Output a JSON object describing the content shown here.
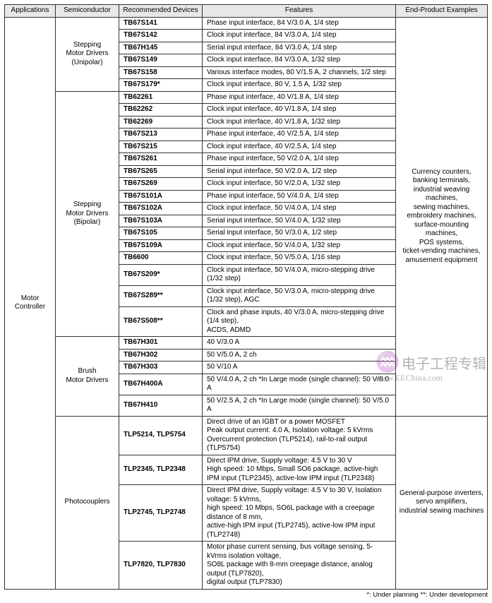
{
  "headers": {
    "applications": "Applications",
    "semiconductor": "Semiconductor",
    "devices": "Recommended Devices",
    "features": "Features",
    "end": "End-Product Examples"
  },
  "application": "Motor Controller",
  "groups": {
    "unipolar": "Stepping\nMotor Drivers\n(Unipolar)",
    "bipolar": "Stepping\nMotor Drivers\n(Bipolar)",
    "brush": "Brush\nMotor Drivers",
    "photo": "Photocouplers"
  },
  "end_products": {
    "top": "Currency counters,\nbanking terminals,\nindustrial weaving machines,\nsewing machines,\nembroidery machines,\nsurface-mounting machines,\nPOS systems,\nticket-vending machines,\namusement equipment",
    "bottom": "General-purpose inverters,\nservo amplifiers,\nindustrial sewing machines"
  },
  "rows": {
    "u": [
      {
        "dev": "TB67S141",
        "feat": "Phase input interface, 84 V/3.0 A, 1/4 step"
      },
      {
        "dev": "TB67S142",
        "feat": "Clock input interface, 84 V/3.0 A, 1/4 step"
      },
      {
        "dev": "TB67H145",
        "feat": "Serial input interface, 84 V/3.0 A, 1/4 step"
      },
      {
        "dev": "TB67S149",
        "feat": "Clock input interface, 84 V/3.0 A, 1/32 step"
      },
      {
        "dev": "TB67S158",
        "feat": "Various interface modes, 80 V/1.5 A, 2 channels, 1/2 step"
      },
      {
        "dev": "TB67S179*",
        "feat": "Clock input interface, 80 V, 1.5 A, 1/32 step"
      }
    ],
    "b": [
      {
        "dev": "TB62261",
        "feat": "Phase input interface, 40 V/1.8 A, 1/4 step"
      },
      {
        "dev": "TB62262",
        "feat": "Clock input interface, 40 V/1.8 A, 1/4 step"
      },
      {
        "dev": "TB62269",
        "feat": "Clock input interface, 40 V/1.8 A, 1/32 step"
      },
      {
        "dev": "TB67S213",
        "feat": "Phase input interface, 40 V/2.5 A, 1/4 step"
      },
      {
        "dev": "TB67S215",
        "feat": "Clock input interface, 40 V/2.5 A, 1/4 step"
      },
      {
        "dev": "TB67S261",
        "feat": "Phase input interface, 50 V/2.0 A, 1/4 step"
      },
      {
        "dev": "TB67S265",
        "feat": "Serial input interface, 50 V/2.0 A, 1/2 step"
      },
      {
        "dev": "TB67S269",
        "feat": "Clock input interface, 50 V/2.0 A, 1/32 step"
      },
      {
        "dev": "TB67S101A",
        "feat": "Phase input interface, 50 V/4.0 A, 1/4 step"
      },
      {
        "dev": "TB67S102A",
        "feat": "Clock input interface, 50 V/4.0 A, 1/4 step"
      },
      {
        "dev": "TB67S103A",
        "feat": "Serial input interface, 50 V/4.0 A, 1/32 step"
      },
      {
        "dev": "TB67S105",
        "feat": "Serial input interface, 50 V/3.0 A, 1/2 step"
      },
      {
        "dev": "TB67S109A",
        "feat": "Clock input interface, 50 V/4.0 A, 1/32 step"
      },
      {
        "dev": "TB6600",
        "feat": "Clock input interface, 50 V/5.0 A, 1/16  step"
      },
      {
        "dev": "TB67S209*",
        "feat": "Clock input interface, 50 V/4.0 A, micro-stepping drive (1/32 step)"
      },
      {
        "dev": "TB67S289**",
        "feat": "Clock input interface, 50 V/3.0 A, micro-stepping drive (1/32 step), AGC"
      },
      {
        "dev": "TB67S508**",
        "feat": "Clock and phase inputs, 40 V/3.0 A, micro-stepping drive (1/4 step),\nACDS, ADMD"
      }
    ],
    "br": [
      {
        "dev": "TB67H301",
        "feat": "40 V/3.0 A"
      },
      {
        "dev": "TB67H302",
        "feat": "50 V/5.0 A, 2 ch"
      },
      {
        "dev": "TB67H303",
        "feat": "50 V/10 A"
      },
      {
        "dev": "TB67H400A",
        "feat": "50 V/4.0 A, 2 ch *In Large mode (single channel): 50 V/8.0 A"
      },
      {
        "dev": "TB67H410",
        "feat": "50 V/2.5 A, 2 ch *In Large mode (single channel): 50 V/5.0 A"
      }
    ],
    "p": [
      {
        "dev": "TLP5214, TLP5754",
        "feat": "Direct drive of an IGBT or a power MOSFET\nPeak output current: 4.0 A, Isolation voltage: 5 kVrms\nOvercurrent protection (TLP5214), rail-to-rail output (TLP5754)"
      },
      {
        "dev": "TLP2345, TLP2348",
        "feat": "Direct IPM drive, Supply voltage: 4.5 V to 30 V\nHigh speed: 10 Mbps, Small SO6 package, active-high\nIPM input (TLP2345), active-low IPM input (TLP2348)"
      },
      {
        "dev": "TLP2745, TLP2748",
        "feat": "Direct IPM drive, Supply voltage: 4.5 V to 30 V, Isolation voltage: 5 kVrms,\nhigh speed: 10 Mbps, SO6L package with a creepage distance of 8 mm,\nactive-high IPM input (TLP2745), active-low IPM input (TLP2748)"
      },
      {
        "dev": "TLP7820, TLP7830",
        "feat": "Motor phase current sensing, bus voltage sensing, 5-kVrms isolation voltage,\nSO8L package with 8-mm creepage distance, analog output (TLP7820),\ndigital output (TLP7830)"
      }
    ]
  },
  "footnote": "*: Under planning **: Under development",
  "watermark": {
    "txt": "电子工程专辑",
    "url": "www.EEChina.com"
  }
}
